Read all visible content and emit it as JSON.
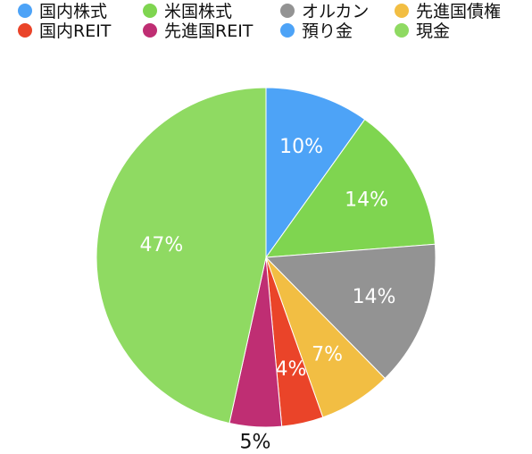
{
  "chart_data": {
    "type": "pie",
    "categories": [
      "国内株式",
      "米国株式",
      "オルカン",
      "先進国債権",
      "国内REIT",
      "先進国REIT",
      "預り金",
      "現金"
    ],
    "values": [
      10,
      14,
      14,
      7,
      4,
      5,
      0,
      47
    ],
    "data_labels": [
      "10%",
      "14%",
      "14%",
      "7%",
      "4%",
      "5%",
      "",
      "47%"
    ],
    "colors": [
      "#4DA3F7",
      "#7FD550",
      "#939393",
      "#F2BE43",
      "#EA4429",
      "#BF2E73",
      "#4DA3F7",
      "#8FDA62"
    ],
    "legend_placement": "top",
    "title": "",
    "start_angle_deg": 0,
    "direction": "clockwise"
  }
}
